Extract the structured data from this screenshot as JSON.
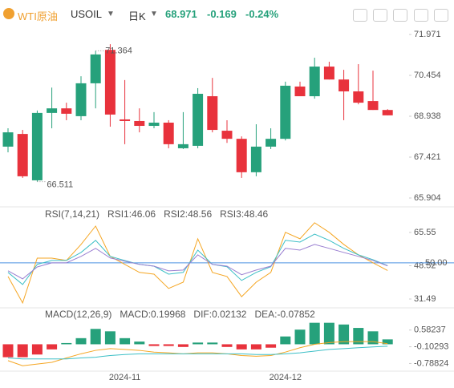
{
  "header": {
    "name": "WTI原油",
    "symbol": "USOIL",
    "period": "日K",
    "price": 68.971,
    "change": -0.169,
    "change_pct": "-0.24%"
  },
  "chart_data": [
    {
      "type": "candlestick",
      "up_color": "#26a17b",
      "down_color": "#e8323c",
      "open": [
        67.81,
        68.28,
        66.56,
        69.06,
        69.23,
        68.94,
        70.16,
        71.4,
        68.82,
        68.76,
        68.58,
        68.7,
        67.75,
        67.84,
        69.68,
        68.4,
        68.1,
        66.86,
        67.81,
        68.1,
        70.04,
        69.68,
        70.78,
        70.3,
        69.86,
        69.5,
        69.17
      ],
      "high": [
        68.49,
        68.43,
        69.15,
        70.0,
        69.44,
        70.42,
        71.364,
        71.61,
        70.28,
        69.23,
        69.09,
        68.79,
        69.09,
        69.98,
        70.36,
        68.79,
        68.19,
        68.64,
        68.49,
        70.22,
        70.22,
        71.11,
        70.96,
        70.66,
        70.87,
        70.63,
        69.2
      ],
      "low": [
        67.6,
        66.65,
        66.511,
        68.49,
        68.79,
        68.79,
        69.23,
        68.55,
        67.9,
        68.34,
        68.49,
        67.75,
        67.72,
        67.75,
        68.34,
        67.95,
        66.65,
        66.71,
        67.72,
        68.04,
        69.68,
        69.59,
        70.3,
        68.79,
        69.38,
        69.17,
        68.97
      ],
      "close": [
        68.34,
        66.71,
        69.06,
        69.23,
        69.03,
        70.16,
        71.23,
        69.0,
        68.76,
        68.58,
        68.7,
        67.9,
        67.9,
        69.77,
        68.43,
        68.1,
        66.86,
        67.81,
        68.1,
        70.07,
        69.68,
        70.78,
        70.3,
        69.86,
        69.44,
        69.17,
        68.971
      ],
      "ylim": [
        65.666,
        72.209
      ],
      "yticks": [
        71.971,
        70.454,
        68.938,
        67.421,
        65.904
      ],
      "grid": false
    },
    {
      "type": "line",
      "title": "RSI(7,14,21)",
      "series": [
        {
          "name": "RSI1:46.06",
          "color": "#f5a623",
          "values": [
            43.0,
            29.5,
            52.4,
            52.4,
            51.2,
            59.4,
            68.8,
            53.3,
            49.2,
            45.1,
            44.2,
            36.9,
            40.1,
            62.3,
            45.1,
            43.0,
            32.7,
            40.1,
            45.1,
            65.6,
            62.3,
            70.5,
            65.6,
            59.4,
            54.1,
            50.0,
            46.06
          ]
        },
        {
          "name": "RSI2:48.56",
          "color": "#3cbfc6",
          "values": [
            45.1,
            38.9,
            49.2,
            51.2,
            51.2,
            55.3,
            61.5,
            53.3,
            51.2,
            49.2,
            48.3,
            44.2,
            45.1,
            56.5,
            49.2,
            48.0,
            41.0,
            45.1,
            48.0,
            61.5,
            60.6,
            64.7,
            61.5,
            57.4,
            54.1,
            51.6,
            48.56
          ]
        },
        {
          "name": "RSI3:48.46",
          "color": "#9a7fd1",
          "values": [
            45.9,
            41.8,
            47.9,
            50.0,
            50.0,
            53.3,
            57.4,
            52.5,
            50.8,
            49.2,
            48.3,
            45.9,
            46.3,
            54.1,
            49.2,
            48.3,
            43.9,
            46.3,
            48.3,
            57.4,
            56.5,
            59.4,
            57.4,
            55.3,
            53.3,
            51.2,
            48.46
          ]
        }
      ],
      "reference_line": {
        "value": 50,
        "label": "50.00",
        "color": "#4a90e2"
      },
      "ylim": [
        27.8,
        77.0
      ],
      "yticks": [
        65.55,
        48.52,
        31.49
      ]
    },
    {
      "type": "combo",
      "title": "MACD(12,26,9)",
      "categories": [
        null,
        null,
        null,
        null,
        null,
        null,
        null,
        null,
        "2024-11",
        null,
        null,
        null,
        null,
        null,
        null,
        null,
        null,
        null,
        null,
        "2024-12",
        null,
        null,
        null,
        null,
        null,
        null,
        null
      ],
      "bars": {
        "name": "MACD:0.19968",
        "up_color": "#26a17b",
        "down_color": "#e8323c",
        "values": [
          -0.53,
          -0.53,
          -0.42,
          -0.21,
          0.05,
          0.25,
          0.63,
          0.53,
          0.25,
          0.11,
          -0.07,
          -0.07,
          -0.11,
          0.07,
          0.07,
          -0.11,
          -0.21,
          -0.21,
          -0.14,
          0.32,
          0.6,
          0.88,
          0.88,
          0.81,
          0.67,
          0.53,
          0.19968
        ]
      },
      "series": [
        {
          "name": "DIF:0.02132",
          "color": "#f5a623",
          "values": [
            -0.67,
            -0.88,
            -0.81,
            -0.74,
            -0.56,
            -0.39,
            -0.25,
            -0.18,
            -0.21,
            -0.25,
            -0.32,
            -0.35,
            -0.39,
            -0.35,
            -0.35,
            -0.39,
            -0.46,
            -0.49,
            -0.46,
            -0.32,
            -0.14,
            0.0,
            0.07,
            0.11,
            0.11,
            0.11,
            0.02132
          ]
        },
        {
          "name": "DEA:-0.07852",
          "color": "#3cbfc6",
          "values": [
            -0.56,
            -0.6,
            -0.6,
            -0.6,
            -0.6,
            -0.56,
            -0.53,
            -0.46,
            -0.42,
            -0.39,
            -0.39,
            -0.39,
            -0.39,
            -0.39,
            -0.39,
            -0.39,
            -0.39,
            -0.42,
            -0.42,
            -0.39,
            -0.35,
            -0.28,
            -0.21,
            -0.18,
            -0.14,
            -0.11,
            -0.07852
          ]
        }
      ],
      "ylim": [
        -1.069,
        1.46
      ],
      "yticks": [
        0.58237,
        -0.10293,
        -0.78824
      ]
    }
  ]
}
